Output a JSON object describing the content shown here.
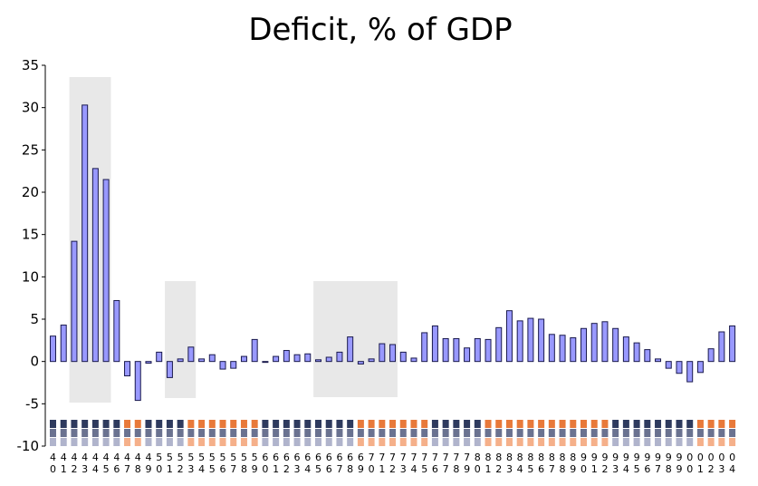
{
  "chart_data": {
    "type": "bar",
    "title": "Deficit, % of GDP",
    "xlabel": "",
    "ylabel": "",
    "ylim": [
      -10,
      35
    ],
    "yticks": [
      35,
      30,
      25,
      20,
      15,
      10,
      5,
      0,
      -5,
      -10
    ],
    "grid": false,
    "legend": "none",
    "categories": [
      "40",
      "41",
      "42",
      "43",
      "44",
      "45",
      "46",
      "47",
      "48",
      "49",
      "50",
      "51",
      "52",
      "53",
      "54",
      "55",
      "56",
      "57",
      "58",
      "59",
      "60",
      "61",
      "62",
      "63",
      "64",
      "65",
      "66",
      "67",
      "68",
      "69",
      "70",
      "71",
      "72",
      "73",
      "74",
      "75",
      "76",
      "77",
      "78",
      "79",
      "80",
      "81",
      "82",
      "83",
      "84",
      "85",
      "86",
      "87",
      "88",
      "89",
      "90",
      "91",
      "92",
      "93",
      "94",
      "95",
      "96",
      "97",
      "98",
      "99",
      "00",
      "01",
      "02",
      "03",
      "04"
    ],
    "values": [
      3.0,
      4.3,
      14.2,
      30.3,
      22.8,
      21.5,
      7.2,
      -1.7,
      -4.6,
      -0.2,
      1.1,
      -1.9,
      0.3,
      1.7,
      0.3,
      0.8,
      -0.9,
      -0.8,
      0.6,
      2.6,
      -0.1,
      0.6,
      1.3,
      0.8,
      0.9,
      0.2,
      0.5,
      1.1,
      2.9,
      -0.3,
      0.3,
      2.1,
      2.0,
      1.1,
      0.4,
      3.4,
      4.2,
      2.7,
      2.7,
      1.6,
      2.7,
      2.6,
      4.0,
      6.0,
      4.8,
      5.1,
      5.0,
      3.2,
      3.1,
      2.8,
      3.9,
      4.5,
      4.7,
      3.9,
      2.9,
      2.2,
      1.4,
      0.3,
      -0.8,
      -1.4,
      -2.4,
      -1.3,
      1.5,
      3.5,
      4.2
    ],
    "shaded_periods": [
      {
        "from": "42",
        "to": "45"
      },
      {
        "from": "51",
        "to": "53"
      },
      {
        "from": "65",
        "to": "72"
      }
    ],
    "party_strip": [
      "D",
      "D",
      "D",
      "D",
      "D",
      "D",
      "D",
      "R",
      "R",
      "D",
      "D",
      "D",
      "D",
      "R",
      "R",
      "R",
      "R",
      "R",
      "R",
      "R",
      "D",
      "D",
      "D",
      "D",
      "D",
      "D",
      "D",
      "D",
      "D",
      "R",
      "R",
      "R",
      "R",
      "R",
      "R",
      "R",
      "D",
      "D",
      "D",
      "D",
      "D",
      "R",
      "R",
      "R",
      "R",
      "R",
      "R",
      "R",
      "R",
      "R",
      "R",
      "R",
      "R",
      "D",
      "D",
      "D",
      "D",
      "D",
      "D",
      "D",
      "D",
      "R",
      "R",
      "R",
      "R"
    ],
    "colors": {
      "bar_fill": "#9999ff",
      "bar_stroke": "#1a1a4d",
      "shade": "#e8e8e8",
      "strip_dark": "#2e3a5e",
      "strip_mid": "#6a7290",
      "strip_light": "#b0b4cc",
      "strip_orange": "#e8793a",
      "strip_peach": "#f5b08a"
    }
  }
}
